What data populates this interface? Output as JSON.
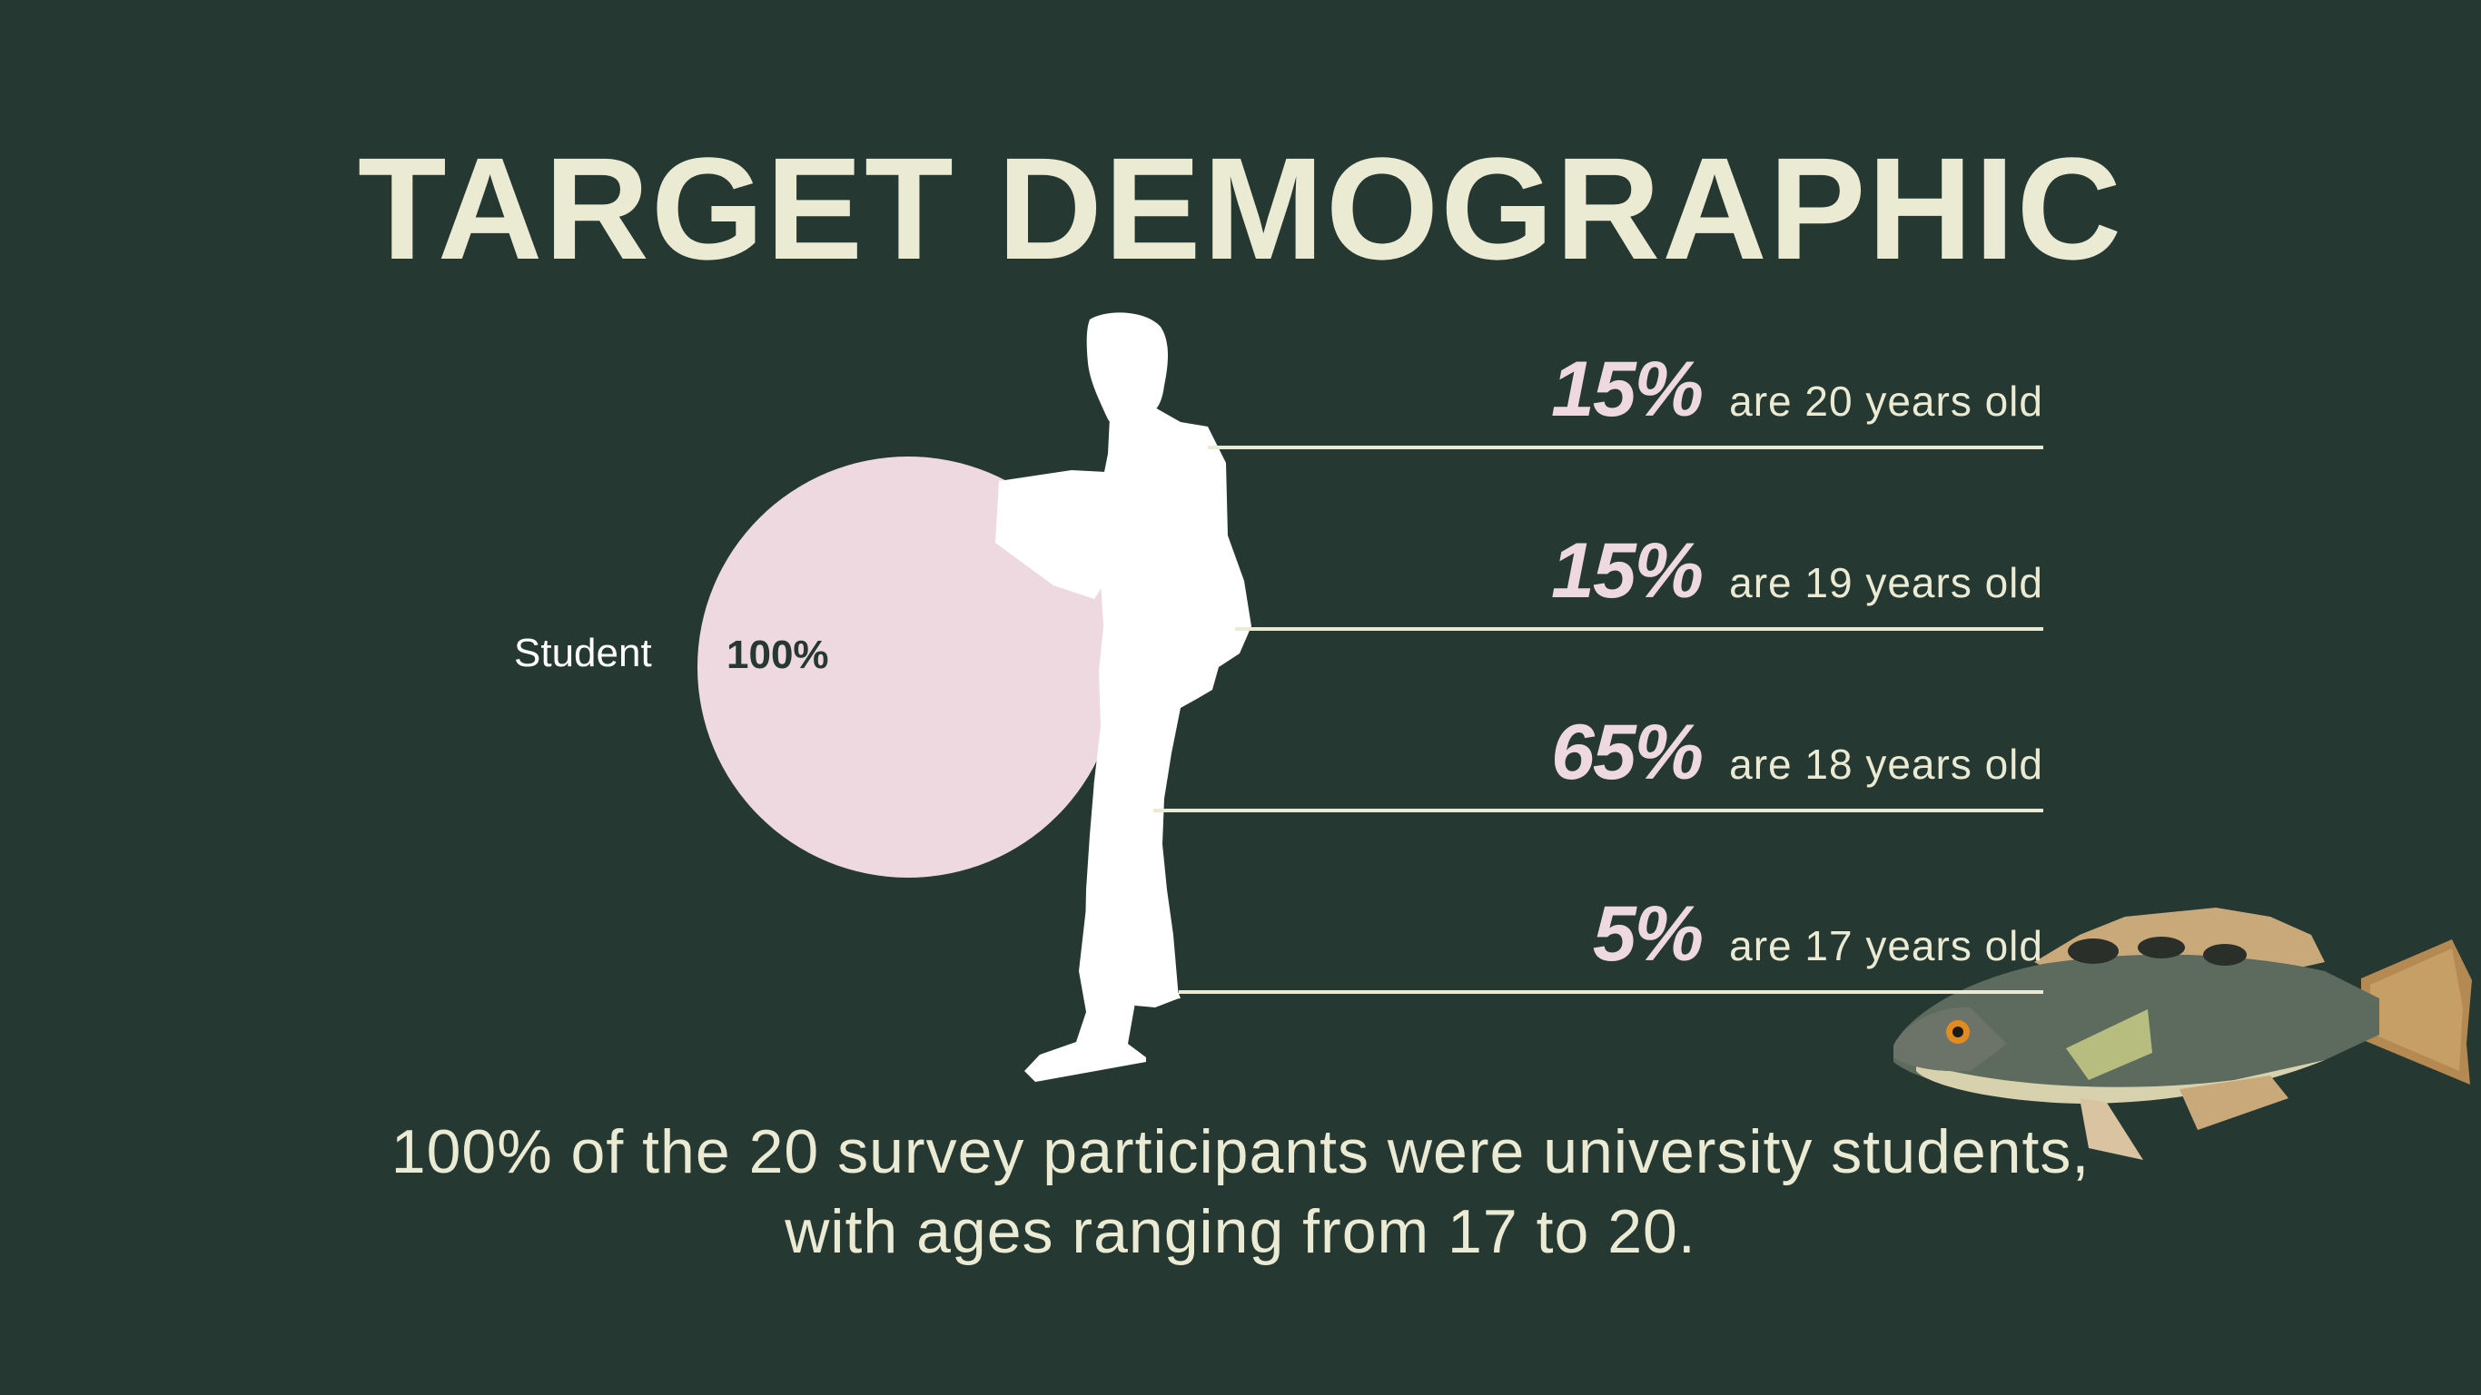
{
  "title": "TARGET DEMOGRAPHIC",
  "caption_line1": "100% of the 20 survey participants were university students,",
  "caption_line2": "with ages ranging from 17 to 20.",
  "colors": {
    "background": "#263832",
    "cream": "#ebebd3",
    "pink": "#efd9e1",
    "white": "#ffffff"
  },
  "icons": {
    "silhouette": "student-silhouette-icon",
    "fish": "fish-illustration"
  },
  "chart_data": [
    {
      "type": "pie",
      "categories": [
        "Student"
      ],
      "values": [
        100
      ],
      "value_labels": [
        "100%"
      ]
    },
    {
      "type": "table",
      "rows": [
        {
          "value": 15,
          "pct_label": "15%",
          "text": "are 20 years old"
        },
        {
          "value": 15,
          "pct_label": "15%",
          "text": "are 19 years old"
        },
        {
          "value": 65,
          "pct_label": "65%",
          "text": "are 18 years old"
        },
        {
          "value": 5,
          "pct_label": "5%",
          "text": "are 17 years old"
        }
      ]
    }
  ]
}
